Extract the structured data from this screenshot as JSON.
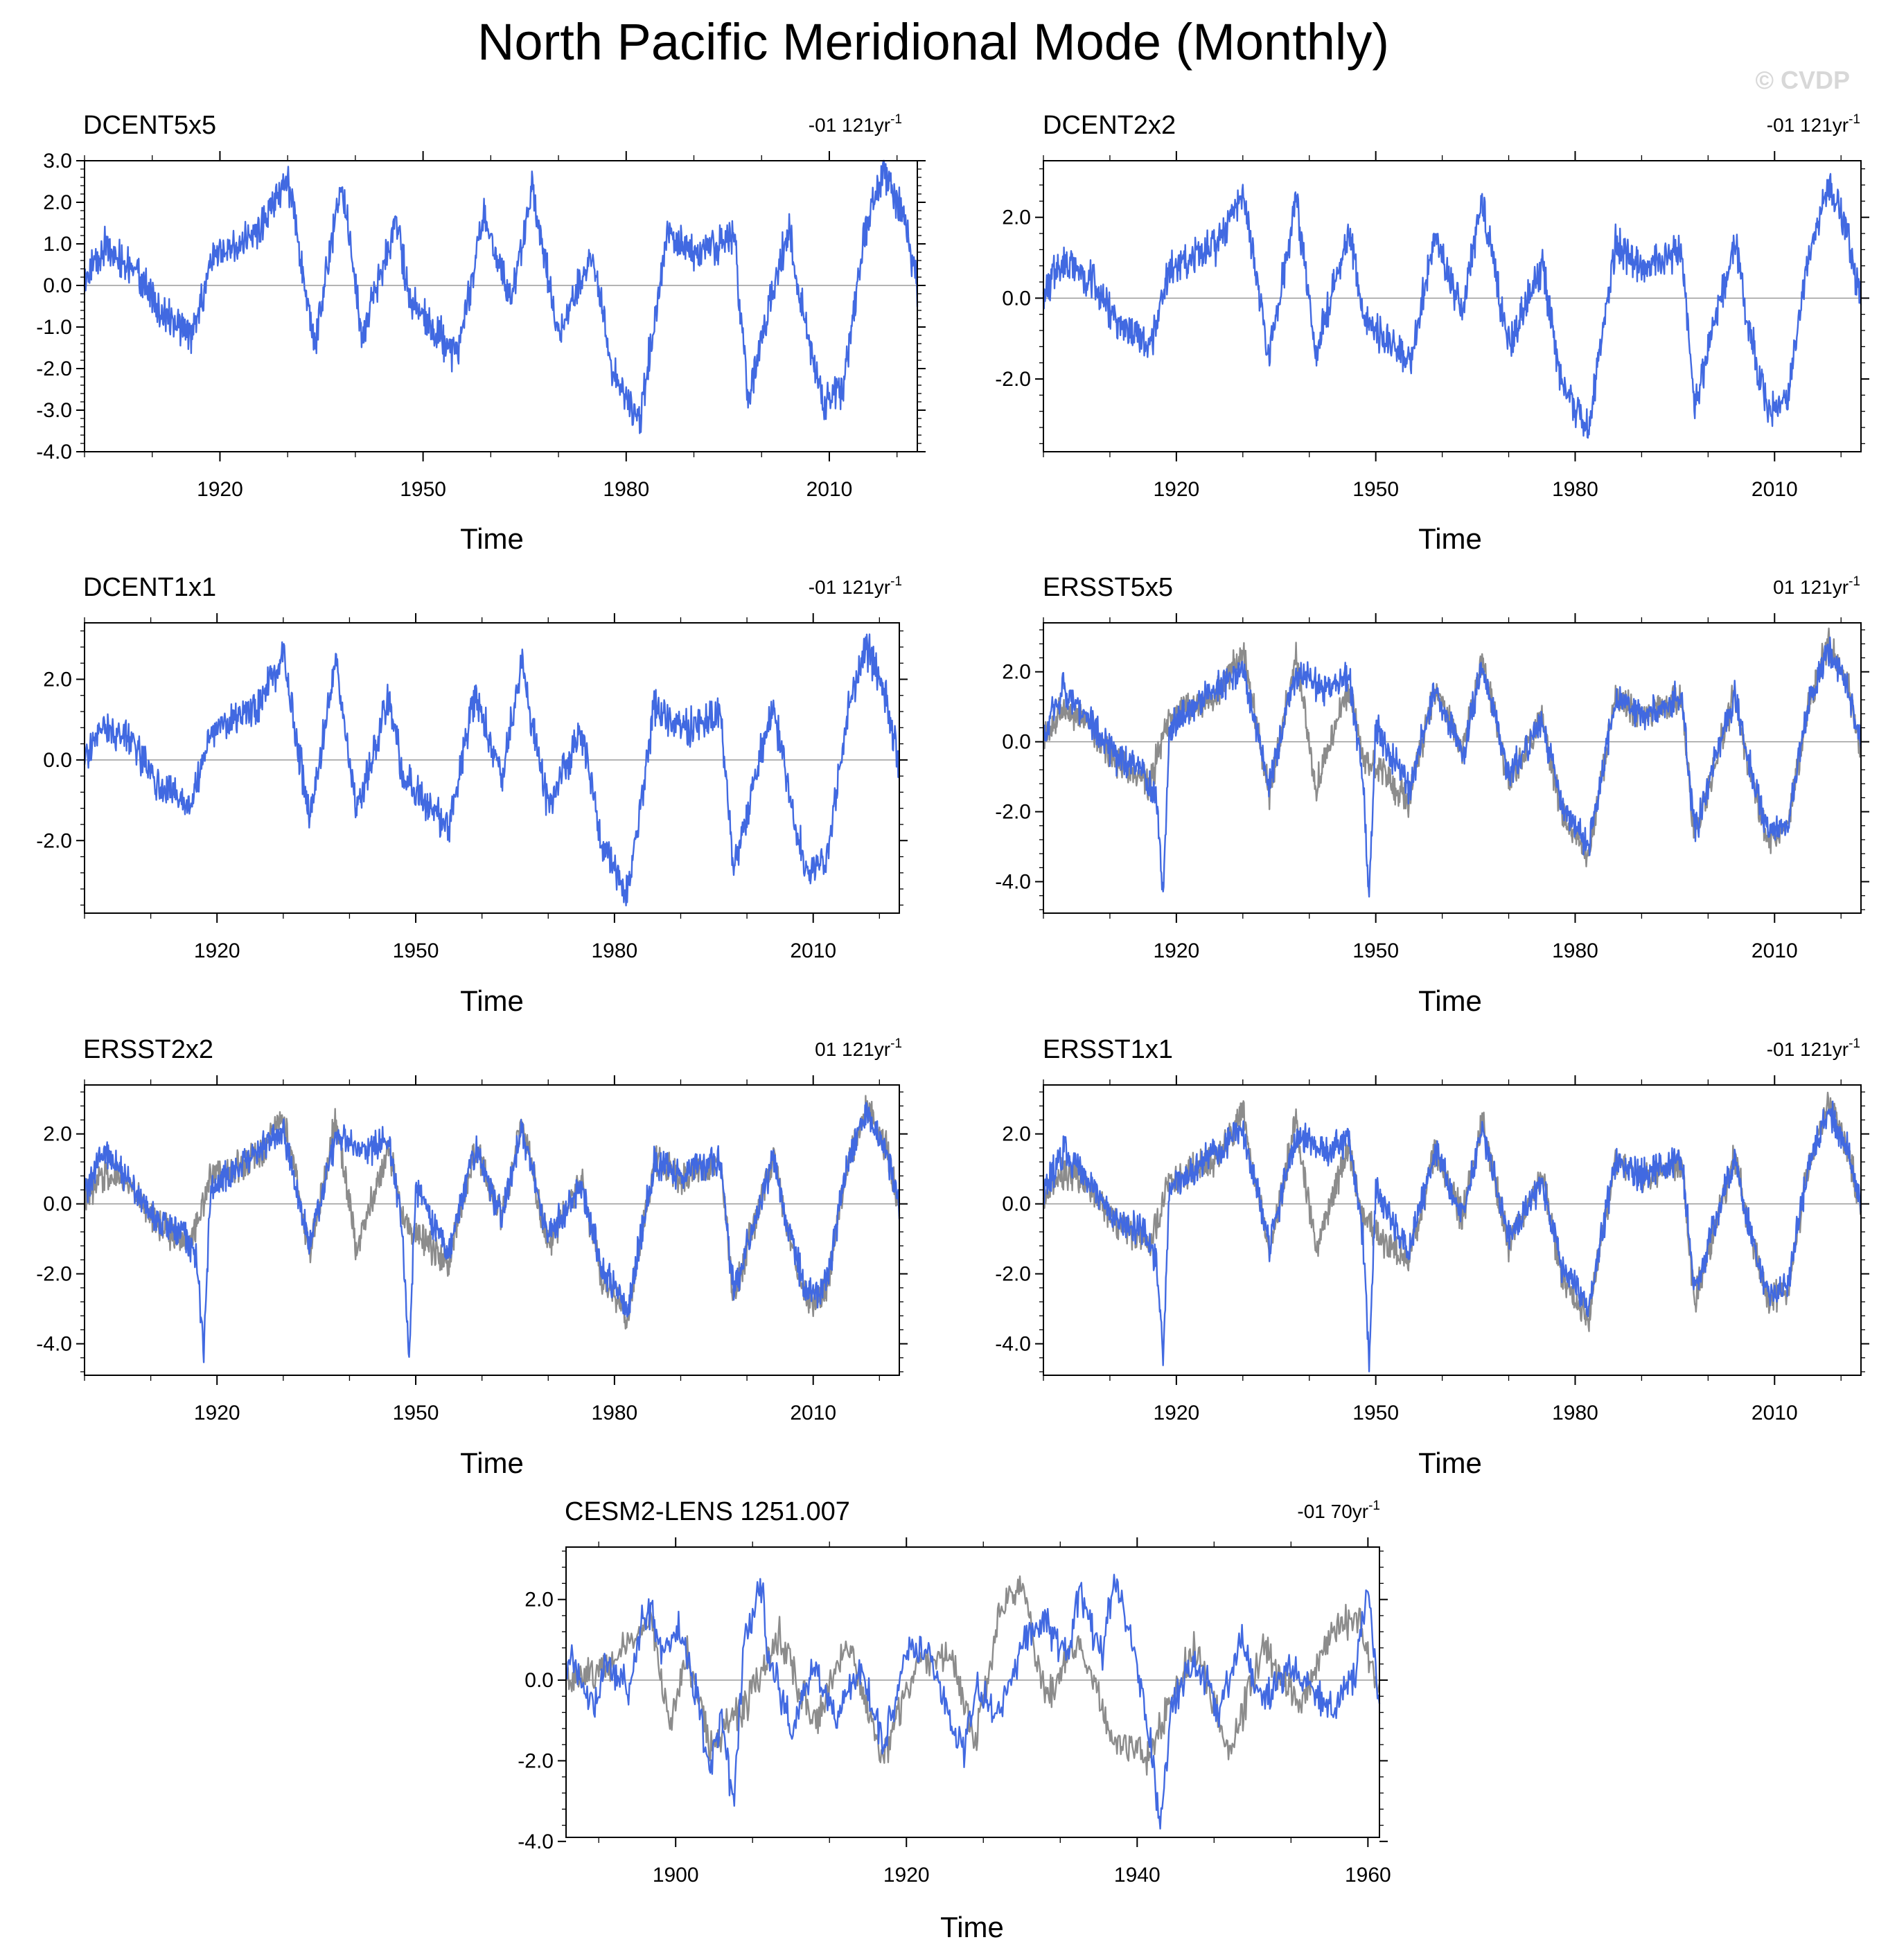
{
  "figure": {
    "title": "North Pacific Meridional Mode (Monthly)",
    "watermark": "© CVDP",
    "obs_color": "#4169E1",
    "ref_color": "#8c8c8c"
  },
  "chart_data": [
    {
      "type": "line",
      "title": "DCENT5x5",
      "trend": "-01 121yr",
      "trend_sup": "-1",
      "xlabel": "Time",
      "xlim": [
        1900,
        2023
      ],
      "xticks": [
        1920,
        1950,
        1980,
        2010
      ],
      "ylim": [
        -4.0,
        3.0
      ],
      "yticks": [
        3.0,
        2.0,
        1.0,
        0.0,
        -1.0,
        -2.0,
        -3.0,
        -4.0
      ],
      "ytick_labels": [
        "3.0",
        "2.0",
        "1.0",
        "0.0",
        "-1.0",
        "-2.0",
        "-3.0",
        "-4.0"
      ],
      "series": [
        {
          "role": "plotted",
          "color": "#4169E1",
          "x": [
            1900,
            1903,
            1907,
            1911,
            1916,
            1919,
            1926,
            1930,
            1934,
            1938,
            1941,
            1946,
            1948,
            1955,
            1959,
            1963,
            1966,
            1970,
            1975,
            1978,
            1982,
            1986,
            1990,
            1996,
            1998,
            2000,
            2004,
            2006,
            2009,
            2012,
            2015,
            2018,
            2021,
            2023
          ],
          "y": [
            0.1,
            0.9,
            0.5,
            -0.6,
            -1.2,
            0.7,
            1.3,
            2.6,
            -1.5,
            2.5,
            -1.3,
            1.6,
            -0.4,
            -1.7,
            1.6,
            -0.4,
            2.4,
            -1.2,
            0.8,
            -2.1,
            -3.3,
            1.3,
            0.7,
            1.2,
            -2.8,
            -1.3,
            1.4,
            -0.6,
            -2.8,
            -2.5,
            1.0,
            2.8,
            1.6,
            -0.1
          ]
        }
      ]
    },
    {
      "type": "line",
      "title": "DCENT2x2",
      "trend": "-01 121yr",
      "trend_sup": "-1",
      "xlabel": "Time",
      "xlim": [
        1900,
        2023
      ],
      "xticks": [
        1920,
        1950,
        1980,
        2010
      ],
      "ylim": [
        -3.8,
        3.4
      ],
      "yticks": [
        2.0,
        0.0,
        -2.0
      ],
      "ytick_labels": [
        "2.0",
        "0.0",
        "-2.0"
      ],
      "series": [
        {
          "role": "plotted",
          "color": "#4169E1",
          "x": [
            1900,
            1903,
            1907,
            1911,
            1916,
            1919,
            1926,
            1930,
            1934,
            1938,
            1941,
            1946,
            1948,
            1955,
            1959,
            1963,
            1966,
            1970,
            1975,
            1978,
            1982,
            1986,
            1990,
            1996,
            1998,
            2000,
            2004,
            2006,
            2009,
            2012,
            2015,
            2018,
            2021,
            2023
          ],
          "y": [
            0.1,
            0.9,
            0.5,
            -0.6,
            -1.2,
            0.7,
            1.3,
            2.6,
            -1.5,
            2.5,
            -1.3,
            1.6,
            -0.4,
            -1.7,
            1.6,
            -0.4,
            2.4,
            -1.2,
            0.8,
            -2.1,
            -3.3,
            1.3,
            0.7,
            1.2,
            -2.8,
            -1.3,
            1.4,
            -0.6,
            -2.8,
            -2.5,
            1.0,
            2.8,
            1.6,
            -0.1
          ]
        }
      ]
    },
    {
      "type": "line",
      "title": "DCENT1x1",
      "trend": "-01 121yr",
      "trend_sup": "-1",
      "xlabel": "Time",
      "xlim": [
        1900,
        2023
      ],
      "xticks": [
        1920,
        1950,
        1980,
        2010
      ],
      "ylim": [
        -3.8,
        3.4
      ],
      "yticks": [
        2.0,
        0.0,
        -2.0
      ],
      "ytick_labels": [
        "2.0",
        "0.0",
        "-2.0"
      ],
      "series": [
        {
          "role": "plotted",
          "color": "#4169E1",
          "x": [
            1900,
            1903,
            1907,
            1911,
            1916,
            1919,
            1926,
            1930,
            1934,
            1938,
            1941,
            1946,
            1948,
            1955,
            1959,
            1963,
            1966,
            1970,
            1975,
            1978,
            1982,
            1986,
            1990,
            1996,
            1998,
            2000,
            2004,
            2006,
            2009,
            2012,
            2015,
            2018,
            2021,
            2023
          ],
          "y": [
            0.1,
            0.9,
            0.5,
            -0.6,
            -1.2,
            0.7,
            1.3,
            2.6,
            -1.5,
            2.5,
            -1.3,
            1.6,
            -0.4,
            -1.7,
            1.6,
            -0.4,
            2.4,
            -1.2,
            0.8,
            -2.1,
            -3.3,
            1.3,
            0.7,
            1.2,
            -2.8,
            -1.3,
            1.4,
            -0.6,
            -2.8,
            -2.5,
            1.0,
            2.8,
            1.6,
            -0.1
          ]
        }
      ]
    },
    {
      "type": "line",
      "title": "ERSST5x5",
      "trend": "01 121yr",
      "trend_sup": "-1",
      "xlabel": "Time",
      "xlim": [
        1900,
        2023
      ],
      "xticks": [
        1920,
        1950,
        1980,
        2010
      ],
      "ylim": [
        -4.9,
        3.4
      ],
      "yticks": [
        2.0,
        0.0,
        -2.0,
        -4.0
      ],
      "ytick_labels": [
        "2.0",
        "0.0",
        "-2.0",
        "-4.0"
      ],
      "series": [
        {
          "role": "plotted",
          "color": "#4169E1",
          "x": [
            1900,
            1903,
            1907,
            1911,
            1915,
            1917,
            1918,
            1919,
            1924,
            1930,
            1934,
            1938,
            1942,
            1946,
            1948,
            1949,
            1950,
            1955,
            1959,
            1963,
            1966,
            1970,
            1975,
            1978,
            1982,
            1986,
            1990,
            1996,
            1998,
            2000,
            2004,
            2006,
            2009,
            2012,
            2015,
            2018,
            2021,
            2023
          ],
          "y": [
            0.3,
            1.5,
            0.6,
            -0.5,
            -0.8,
            -1.6,
            -4.4,
            0.4,
            1.2,
            2.1,
            -1.2,
            2.0,
            1.5,
            1.8,
            -0.8,
            -4.4,
            0.5,
            -1.4,
            1.6,
            -0.4,
            2.2,
            -1.0,
            0.6,
            -1.8,
            -3.0,
            1.2,
            0.8,
            1.3,
            -2.6,
            -1.2,
            1.3,
            -0.5,
            -2.6,
            -2.3,
            1.0,
            2.7,
            1.5,
            0.0
          ]
        },
        {
          "role": "reference",
          "color": "#8c8c8c",
          "x": [
            1900,
            1903,
            1907,
            1911,
            1916,
            1919,
            1926,
            1930,
            1934,
            1938,
            1941,
            1946,
            1948,
            1955,
            1959,
            1963,
            1966,
            1970,
            1975,
            1978,
            1982,
            1986,
            1990,
            1996,
            1998,
            2000,
            2004,
            2006,
            2009,
            2012,
            2015,
            2018,
            2021,
            2023
          ],
          "y": [
            0.1,
            0.9,
            0.5,
            -0.6,
            -1.2,
            0.7,
            1.3,
            2.6,
            -1.5,
            2.5,
            -1.3,
            1.6,
            -0.4,
            -1.7,
            1.6,
            -0.4,
            2.4,
            -1.2,
            0.8,
            -2.1,
            -3.3,
            1.3,
            0.7,
            1.2,
            -2.8,
            -1.3,
            1.4,
            -0.6,
            -2.8,
            -2.5,
            1.0,
            2.8,
            1.6,
            -0.1
          ]
        }
      ]
    },
    {
      "type": "line",
      "title": "ERSST2x2",
      "trend": "01 121yr",
      "trend_sup": "-1",
      "xlabel": "Time",
      "xlim": [
        1900,
        2023
      ],
      "xticks": [
        1920,
        1950,
        1980,
        2010
      ],
      "ylim": [
        -4.9,
        3.4
      ],
      "yticks": [
        2.0,
        0.0,
        -2.0,
        -4.0
      ],
      "ytick_labels": [
        "2.0",
        "0.0",
        "-2.0",
        "-4.0"
      ],
      "series": [
        {
          "role": "plotted",
          "color": "#4169E1",
          "x": [
            1900,
            1903,
            1907,
            1911,
            1915,
            1917,
            1918,
            1919,
            1924,
            1930,
            1934,
            1938,
            1942,
            1946,
            1948,
            1949,
            1950,
            1955,
            1959,
            1963,
            1966,
            1970,
            1975,
            1978,
            1982,
            1986,
            1990,
            1996,
            1998,
            2000,
            2004,
            2006,
            2009,
            2012,
            2015,
            2018,
            2021,
            2023
          ],
          "y": [
            0.3,
            1.5,
            0.6,
            -0.5,
            -0.8,
            -1.6,
            -4.4,
            0.4,
            1.2,
            2.1,
            -1.2,
            2.0,
            1.5,
            1.8,
            -0.8,
            -4.4,
            0.5,
            -1.4,
            1.6,
            -0.4,
            2.2,
            -1.0,
            0.6,
            -1.8,
            -3.0,
            1.2,
            0.8,
            1.3,
            -2.6,
            -1.2,
            1.3,
            -0.5,
            -2.6,
            -2.3,
            1.0,
            2.7,
            1.5,
            0.0
          ]
        },
        {
          "role": "reference",
          "color": "#8c8c8c",
          "x": [
            1900,
            1903,
            1907,
            1911,
            1916,
            1919,
            1926,
            1930,
            1934,
            1938,
            1941,
            1946,
            1948,
            1955,
            1959,
            1963,
            1966,
            1970,
            1975,
            1978,
            1982,
            1986,
            1990,
            1996,
            1998,
            2000,
            2004,
            2006,
            2009,
            2012,
            2015,
            2018,
            2021,
            2023
          ],
          "y": [
            0.1,
            0.9,
            0.5,
            -0.6,
            -1.2,
            0.7,
            1.3,
            2.6,
            -1.5,
            2.5,
            -1.3,
            1.6,
            -0.4,
            -1.7,
            1.6,
            -0.4,
            2.4,
            -1.2,
            0.8,
            -2.1,
            -3.3,
            1.3,
            0.7,
            1.2,
            -2.8,
            -1.3,
            1.4,
            -0.6,
            -2.8,
            -2.5,
            1.0,
            2.8,
            1.6,
            -0.1
          ]
        }
      ]
    },
    {
      "type": "line",
      "title": "ERSST1x1",
      "trend": "-01 121yr",
      "trend_sup": "-1",
      "xlabel": "Time",
      "xlim": [
        1900,
        2023
      ],
      "xticks": [
        1920,
        1950,
        1980,
        2010
      ],
      "ylim": [
        -4.9,
        3.4
      ],
      "yticks": [
        2.0,
        0.0,
        -2.0,
        -4.0
      ],
      "ytick_labels": [
        "2.0",
        "0.0",
        "-2.0",
        "-4.0"
      ],
      "series": [
        {
          "role": "plotted",
          "color": "#4169E1",
          "x": [
            1900,
            1903,
            1907,
            1911,
            1915,
            1917,
            1918,
            1919,
            1924,
            1930,
            1934,
            1938,
            1942,
            1946,
            1948,
            1949,
            1950,
            1955,
            1959,
            1963,
            1966,
            1970,
            1975,
            1978,
            1982,
            1986,
            1990,
            1996,
            1998,
            2000,
            2004,
            2006,
            2009,
            2012,
            2015,
            2018,
            2021,
            2023
          ],
          "y": [
            0.3,
            1.5,
            0.6,
            -0.5,
            -0.8,
            -1.6,
            -4.4,
            0.4,
            1.2,
            2.1,
            -1.2,
            2.0,
            1.5,
            1.8,
            -0.8,
            -4.4,
            0.5,
            -1.4,
            1.6,
            -0.4,
            2.2,
            -1.0,
            0.6,
            -1.8,
            -3.0,
            1.2,
            0.8,
            1.3,
            -2.6,
            -1.2,
            1.3,
            -0.5,
            -2.6,
            -2.3,
            1.0,
            2.7,
            1.5,
            0.0
          ]
        },
        {
          "role": "reference",
          "color": "#8c8c8c",
          "x": [
            1900,
            1903,
            1907,
            1911,
            1916,
            1919,
            1926,
            1930,
            1934,
            1938,
            1941,
            1946,
            1948,
            1955,
            1959,
            1963,
            1966,
            1970,
            1975,
            1978,
            1982,
            1986,
            1990,
            1996,
            1998,
            2000,
            2004,
            2006,
            2009,
            2012,
            2015,
            2018,
            2021,
            2023
          ],
          "y": [
            0.1,
            0.9,
            0.5,
            -0.6,
            -1.2,
            0.7,
            1.3,
            2.6,
            -1.5,
            2.5,
            -1.3,
            1.6,
            -0.4,
            -1.7,
            1.6,
            -0.4,
            2.4,
            -1.2,
            0.8,
            -2.1,
            -3.3,
            1.3,
            0.7,
            1.2,
            -2.8,
            -1.3,
            1.4,
            -0.6,
            -2.8,
            -2.5,
            1.0,
            2.8,
            1.6,
            -0.1
          ]
        }
      ]
    },
    {
      "type": "line",
      "title": "CESM2-LENS 1251.007",
      "trend": "-01 70yr",
      "trend_sup": "-1",
      "xlabel": "Time",
      "xlim": [
        1890.5,
        1961
      ],
      "xticks": [
        1900,
        1920,
        1940,
        1960
      ],
      "ylim": [
        -3.9,
        3.3
      ],
      "yticks": [
        2.0,
        0.0,
        -2.0,
        -4.0
      ],
      "ytick_labels": [
        "2.0",
        "0.0",
        "-2.0",
        "-4.0"
      ],
      "series": [
        {
          "role": "plotted",
          "color": "#4169E1",
          "x": [
            1890.5,
            1891,
            1892,
            1893,
            1894,
            1896,
            1897,
            1898,
            1899,
            1900,
            1901,
            1902,
            1903,
            1904,
            1905,
            1906,
            1907,
            1907.5,
            1908,
            1910,
            1912,
            1914,
            1916,
            1918,
            1920,
            1922,
            1924,
            1925,
            1926,
            1928,
            1930,
            1932,
            1934,
            1935,
            1937,
            1938,
            1939,
            1940,
            1941,
            1942,
            1943,
            1945,
            1947,
            1949,
            1951,
            1953,
            1955,
            1957,
            1959,
            1960,
            1961
          ],
          "y": [
            0.3,
            0.6,
            -0.4,
            -0.5,
            0.4,
            -0.3,
            1.5,
            1.8,
            0.5,
            1.4,
            0.7,
            -0.6,
            -2.2,
            -0.8,
            -3.3,
            1.2,
            1.8,
            2.5,
            0.6,
            -1.2,
            0.3,
            -1.0,
            0.4,
            -1.6,
            0.6,
            0.8,
            -1.2,
            -1.8,
            -0.2,
            -0.9,
            0.9,
            1.6,
            0.4,
            2.2,
            0.6,
            2.5,
            1.6,
            0.4,
            -1.3,
            -3.6,
            -0.7,
            0.6,
            -0.8,
            0.9,
            -0.6,
            0.4,
            -0.3,
            -0.6,
            0.3,
            2.4,
            -0.9
          ]
        },
        {
          "role": "reference",
          "color": "#8c8c8c",
          "x": [
            1890.5,
            1894,
            1898,
            1899.5,
            1901,
            1903,
            1906,
            1909,
            1912,
            1915,
            1918,
            1921,
            1924,
            1926,
            1928,
            1930,
            1932,
            1935,
            1938,
            1941,
            1943,
            1945,
            1948,
            1951,
            1954,
            1957,
            1959,
            1961
          ],
          "y": [
            0.0,
            0.3,
            1.4,
            -1.1,
            0.6,
            -1.7,
            -0.6,
            1.1,
            -1.1,
            0.9,
            -1.9,
            0.6,
            0.5,
            -1.5,
            1.6,
            2.5,
            -0.5,
            1.0,
            -1.6,
            -1.9,
            -0.4,
            0.9,
            -1.8,
            0.8,
            -0.6,
            1.2,
            1.6,
            -0.4
          ]
        }
      ]
    }
  ]
}
